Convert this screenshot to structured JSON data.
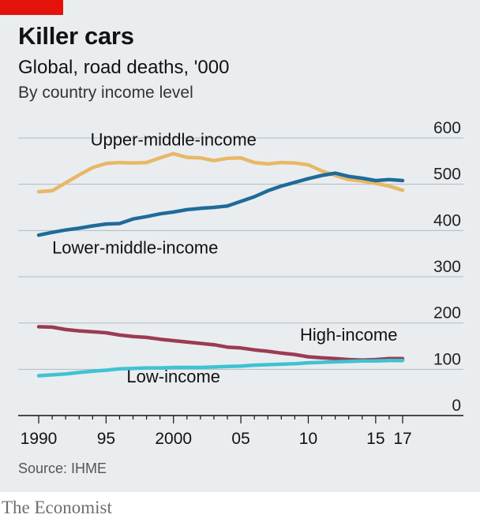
{
  "header": {
    "title": "Killer cars",
    "subtitle": "Global, road deaths, '000",
    "subnote": "By country income level"
  },
  "footer": {
    "source": "Source: IHME",
    "brand": "The Economist"
  },
  "colors": {
    "tag": "#e3120b",
    "grid": "#b0bac2",
    "axis": "#121212",
    "upper_middle": "#e8b866",
    "lower_middle": "#1f6b99",
    "high": "#9c3b52",
    "low": "#3ec3d2"
  },
  "chart_data": {
    "type": "line",
    "title": "Killer cars",
    "ylabel": "Global, road deaths, '000",
    "ylim": [
      0,
      600
    ],
    "y_ticks": [
      "600",
      "500",
      "400",
      "300",
      "200",
      "100",
      "0"
    ],
    "x_ticks": [
      "1990",
      "95",
      "2000",
      "05",
      "10",
      "15",
      "17"
    ],
    "grid": true,
    "x": [
      1990,
      1991,
      1992,
      1993,
      1994,
      1995,
      1996,
      1997,
      1998,
      1999,
      2000,
      2001,
      2002,
      2003,
      2004,
      2005,
      2006,
      2007,
      2008,
      2009,
      2010,
      2011,
      2012,
      2013,
      2014,
      2015,
      2016,
      2017
    ],
    "series": [
      {
        "name": "Upper-middle-income",
        "color_key": "upper_middle",
        "label_year": 2000,
        "label_value": 584,
        "label_anchor": "middle",
        "values": [
          484,
          486,
          503,
          520,
          536,
          545,
          547,
          546,
          547,
          557,
          566,
          558,
          557,
          551,
          556,
          557,
          547,
          544,
          547,
          546,
          542,
          529,
          519,
          510,
          507,
          502,
          496,
          487
        ]
      },
      {
        "name": "Lower-middle-income",
        "color_key": "lower_middle",
        "label_year": 1991,
        "label_value": 350,
        "label_anchor": "start",
        "values": [
          390,
          396,
          401,
          405,
          410,
          414,
          415,
          425,
          430,
          436,
          440,
          445,
          448,
          450,
          453,
          463,
          473,
          486,
          496,
          504,
          512,
          519,
          524,
          517,
          513,
          508,
          510,
          508
        ]
      },
      {
        "name": "High-income",
        "color_key": "high",
        "label_year": 2013,
        "label_value": 162,
        "label_anchor": "middle",
        "values": [
          192,
          191,
          186,
          183,
          181,
          179,
          174,
          171,
          169,
          165,
          162,
          159,
          156,
          153,
          148,
          146,
          142,
          139,
          135,
          132,
          127,
          125,
          123,
          121,
          120,
          121,
          123,
          123
        ]
      },
      {
        "name": "Low-income",
        "color_key": "low",
        "label_year": 2000,
        "label_value": 72,
        "label_anchor": "middle",
        "values": [
          86,
          88,
          90,
          93,
          96,
          98,
          101,
          102,
          103,
          103,
          104,
          104,
          104,
          105,
          106,
          107,
          109,
          110,
          111,
          112,
          114,
          115,
          116,
          117,
          118,
          118,
          119,
          119
        ]
      }
    ]
  }
}
